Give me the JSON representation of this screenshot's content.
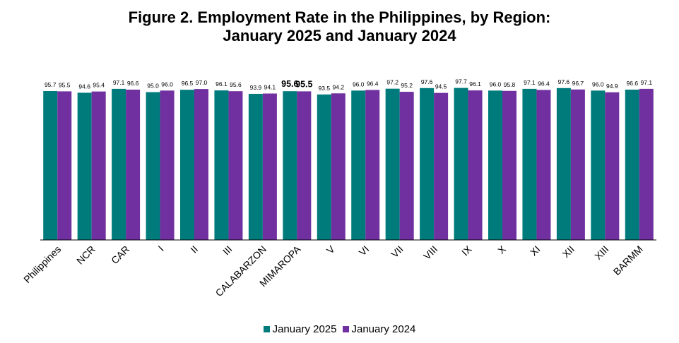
{
  "chart_data": {
    "type": "bar",
    "title_line1": "Figure 2. Employment Rate in the Philippines, by Region:",
    "title_line2": "January 2025 and January 2024",
    "categories": [
      "Philippines",
      "NCR",
      "CAR",
      "I",
      "II",
      "III",
      "CALABARZON",
      "MIMAROPA",
      "V",
      "VI",
      "VII",
      "VIII",
      "IX",
      "X",
      "XI",
      "XII",
      "XIII",
      "BARMM"
    ],
    "series": [
      {
        "name": "January 2025",
        "color": "#007B7C",
        "values": [
          95.7,
          94.6,
          97.1,
          95.0,
          96.5,
          96.1,
          93.9,
          95.6,
          93.5,
          96.0,
          97.2,
          97.6,
          97.7,
          96.0,
          97.1,
          97.6,
          96.0,
          96.6
        ],
        "labels": [
          "95.7",
          "94.6",
          "97.1",
          "95.0",
          "96.5",
          "96.1",
          "93.9",
          "95.6",
          "93.5",
          "96.0",
          "97.2",
          "97.6",
          "97.7",
          "96.0",
          "97.1",
          "97.6",
          "96.0",
          "96.6"
        ]
      },
      {
        "name": "January 2024",
        "color": "#7030A0",
        "values": [
          95.5,
          95.4,
          96.6,
          96.0,
          97.0,
          95.6,
          94.1,
          95.5,
          94.2,
          96.4,
          95.2,
          94.5,
          96.1,
          95.8,
          96.4,
          96.7,
          94.9,
          97.1
        ],
        "labels": [
          "95.5",
          "95.4",
          "96.6",
          "96.0",
          "97.0",
          "95.6",
          "94.1",
          "95.5",
          "94.2",
          "96.4",
          "95.2",
          "94.5",
          "96.1",
          "95.8",
          "96.4",
          "96.7",
          "94.9",
          "97.1"
        ]
      }
    ],
    "highlight_category": "MIMAROPA",
    "ylim": [
      0,
      100
    ],
    "grid": false,
    "legend_position": "bottom"
  }
}
